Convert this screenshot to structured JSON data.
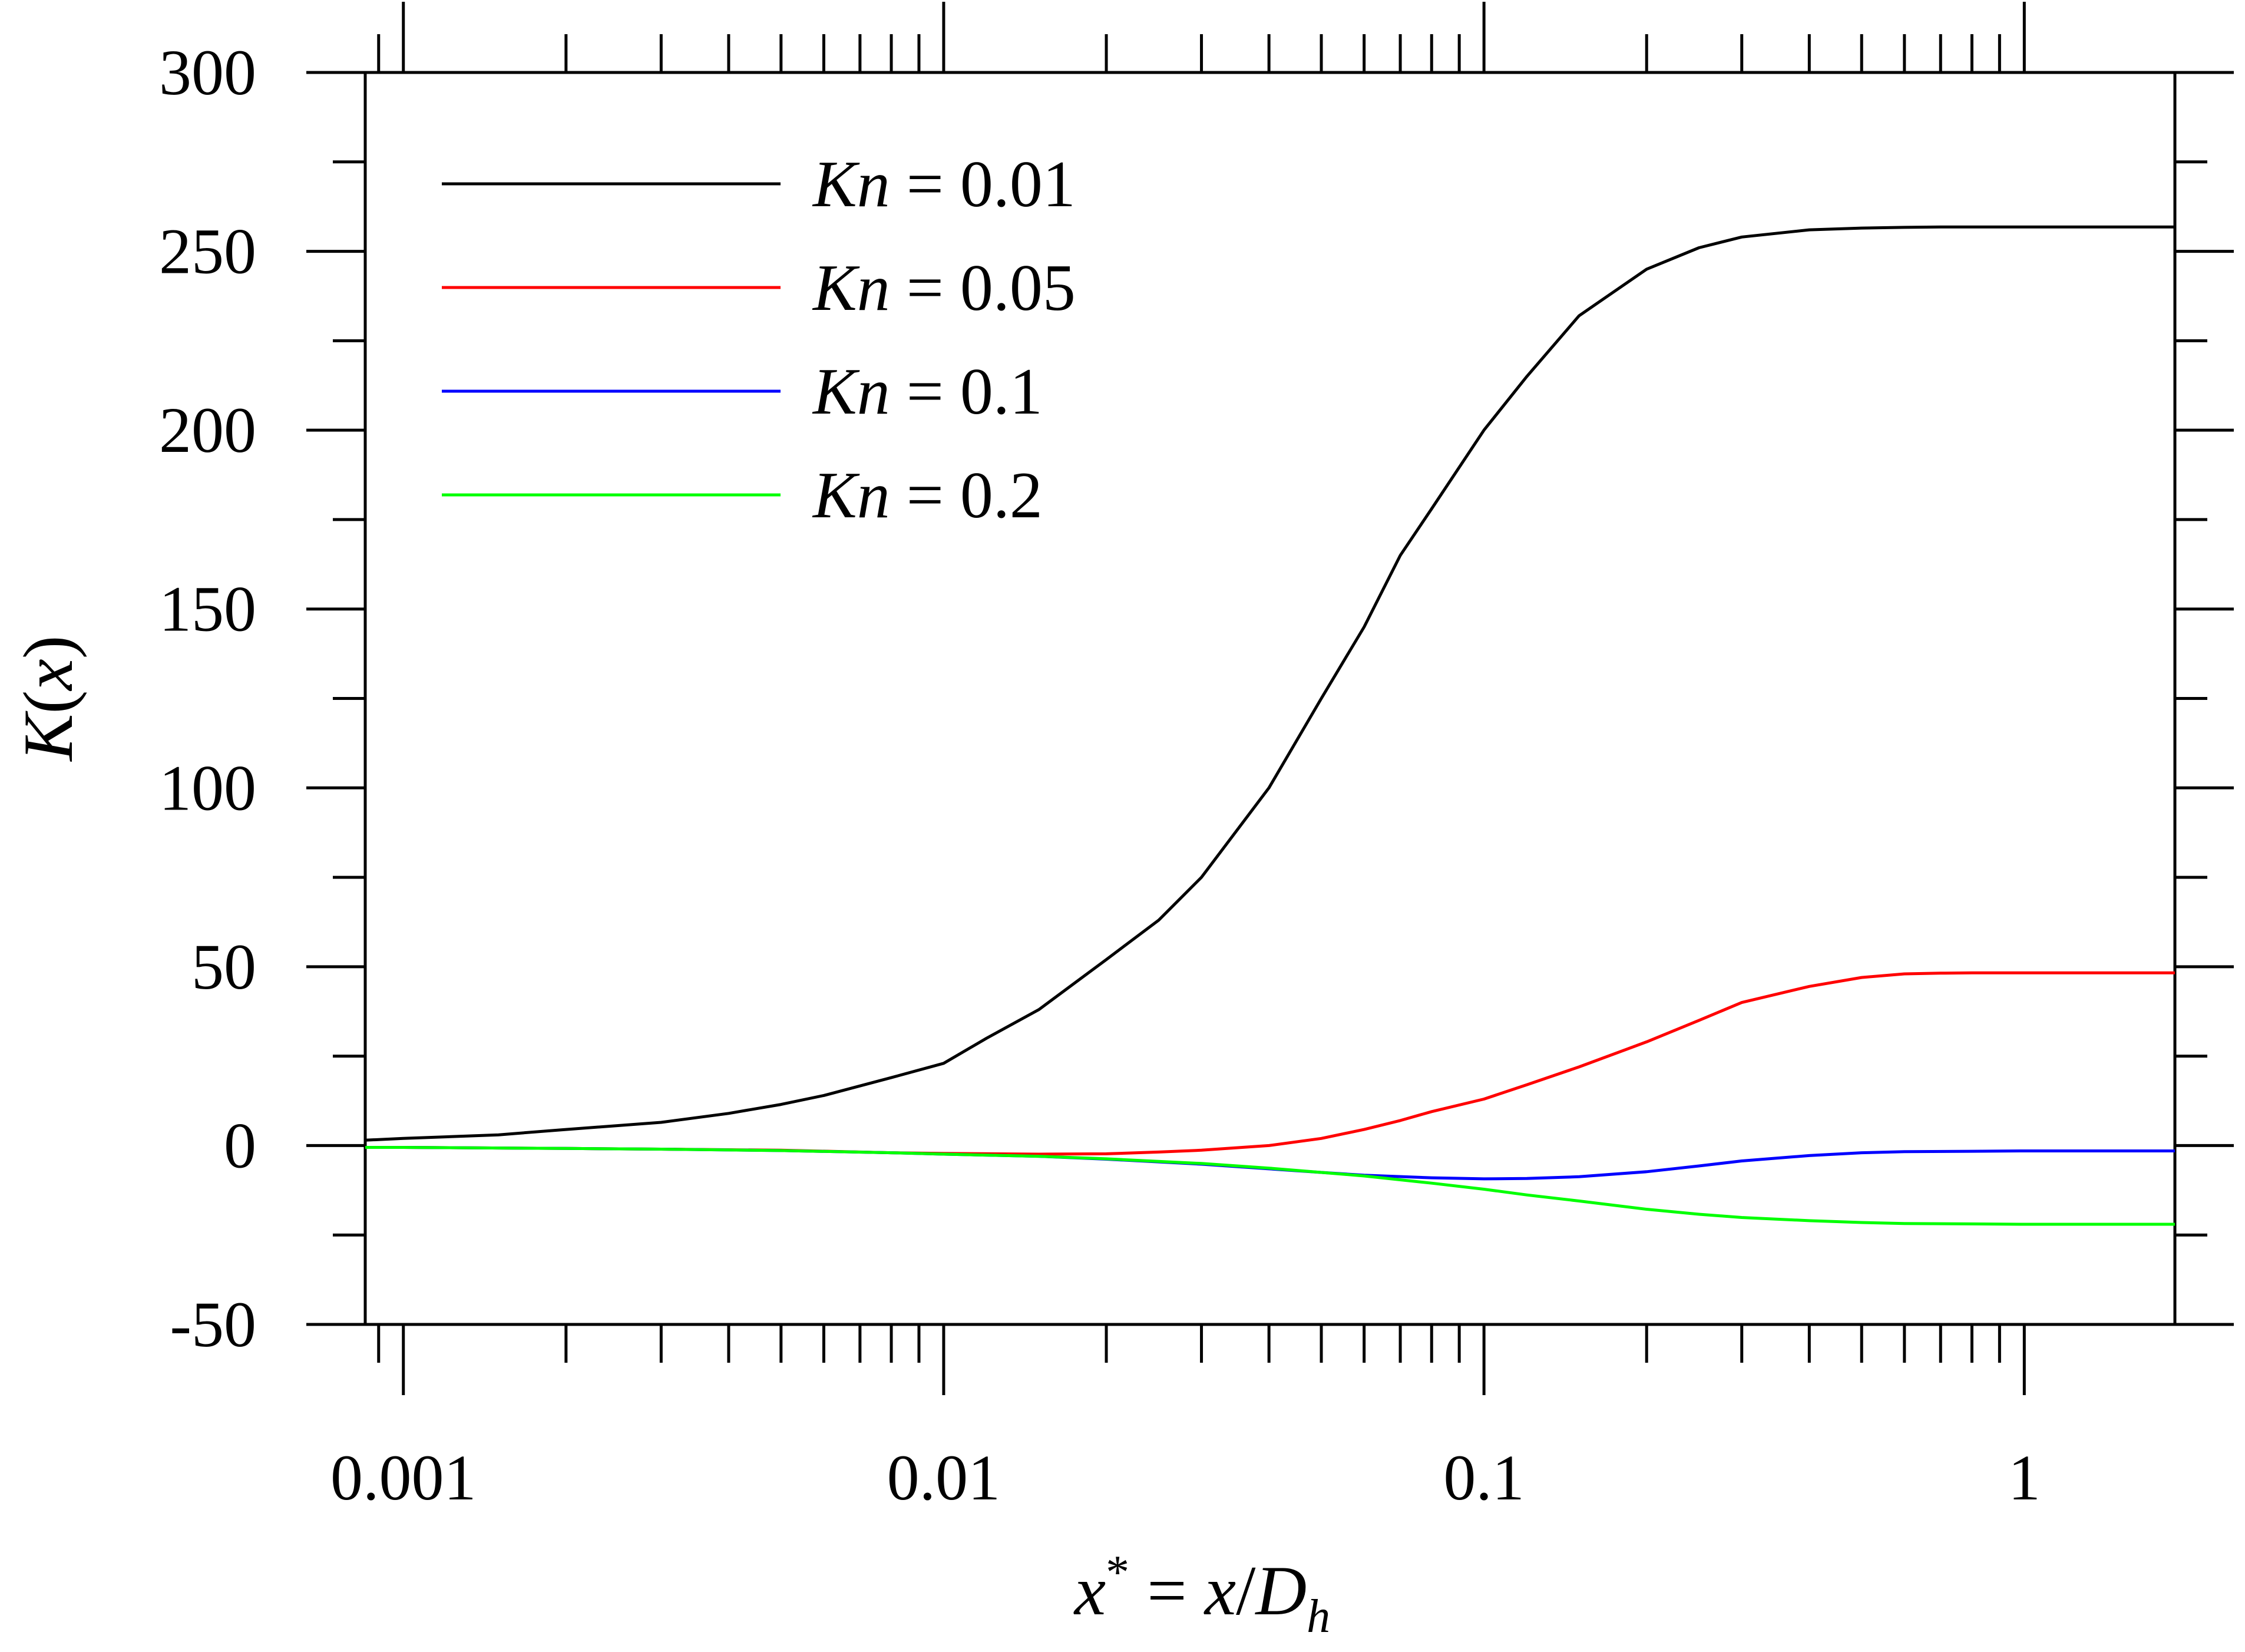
{
  "chart_data": {
    "type": "line",
    "title": "",
    "xlabel": "x* = x/Dh",
    "xlabel_parts": {
      "var": "x",
      "sup": "*",
      "eq": " = ",
      "num": "x",
      "slash": "/",
      "den": "D",
      "sub": "h"
    },
    "ylabel": "K(x)",
    "ylabel_parts": {
      "var": "K",
      "open": "(",
      "arg": "x",
      "close": ")"
    },
    "x_scale": "log",
    "xlim": [
      0.00085,
      1.9
    ],
    "ylim": [
      -50,
      300
    ],
    "x_ticks": [
      {
        "value": 0.001,
        "label": "0.001"
      },
      {
        "value": 0.01,
        "label": "0.01"
      },
      {
        "value": 0.1,
        "label": "0.1"
      },
      {
        "value": 1,
        "label": "1"
      }
    ],
    "y_ticks": [
      {
        "value": -50,
        "label": "-50"
      },
      {
        "value": 0,
        "label": "0"
      },
      {
        "value": 50,
        "label": "50"
      },
      {
        "value": 100,
        "label": "100"
      },
      {
        "value": 150,
        "label": "150"
      },
      {
        "value": 200,
        "label": "200"
      },
      {
        "value": 250,
        "label": "250"
      },
      {
        "value": 300,
        "label": "300"
      }
    ],
    "grid": false,
    "legend_position": "top-left",
    "series": [
      {
        "name": "Kn = 0.01",
        "name_var": "Kn",
        "name_rest": " = 0.01",
        "color": "#000000",
        "x": [
          0.00085,
          0.001,
          0.0015,
          0.002,
          0.003,
          0.004,
          0.005,
          0.006,
          0.008,
          0.01,
          0.012,
          0.015,
          0.02,
          0.025,
          0.03,
          0.04,
          0.05,
          0.06,
          0.07,
          0.08,
          0.1,
          0.12,
          0.15,
          0.2,
          0.25,
          0.3,
          0.4,
          0.5,
          0.6,
          0.7,
          0.8,
          1.0,
          1.5,
          1.9
        ],
        "y": [
          1.5,
          2,
          3,
          4.5,
          6.5,
          9,
          11.5,
          14,
          19,
          23,
          30,
          38,
          52,
          63,
          75,
          100,
          125,
          145,
          165,
          178,
          200,
          215,
          232,
          245,
          251,
          254,
          256,
          256.5,
          256.7,
          256.8,
          256.8,
          256.8,
          256.8,
          256.8
        ]
      },
      {
        "name": "Kn = 0.05",
        "name_var": "Kn",
        "name_rest": " = 0.05",
        "color": "#ff0000",
        "x": [
          0.00085,
          0.001,
          0.002,
          0.003,
          0.005,
          0.008,
          0.01,
          0.015,
          0.02,
          0.025,
          0.03,
          0.04,
          0.05,
          0.06,
          0.07,
          0.08,
          0.1,
          0.12,
          0.15,
          0.2,
          0.25,
          0.3,
          0.4,
          0.5,
          0.6,
          0.7,
          0.8,
          1.0,
          1.5,
          1.9
        ],
        "y": [
          -0.5,
          -0.5,
          -0.8,
          -1,
          -1.3,
          -2,
          -2.2,
          -2.4,
          -2.3,
          -1.8,
          -1.3,
          0,
          2,
          4.5,
          7,
          9.5,
          13,
          17,
          22,
          29,
          35,
          40,
          44.5,
          47,
          48,
          48.2,
          48.3,
          48.3,
          48.3,
          48.3
        ]
      },
      {
        "name": "Kn = 0.1",
        "name_var": "Kn",
        "name_rest": " = 0.1",
        "color": "#0000ff",
        "x": [
          0.00085,
          0.001,
          0.002,
          0.003,
          0.005,
          0.008,
          0.01,
          0.015,
          0.02,
          0.03,
          0.04,
          0.05,
          0.06,
          0.08,
          0.1,
          0.12,
          0.15,
          0.2,
          0.25,
          0.3,
          0.4,
          0.5,
          0.6,
          0.8,
          1.0,
          1.5,
          1.9
        ],
        "y": [
          -0.5,
          -0.5,
          -0.8,
          -1,
          -1.4,
          -2,
          -2.4,
          -3,
          -3.8,
          -5.2,
          -6.5,
          -7.5,
          -8.3,
          -9,
          -9.3,
          -9.2,
          -8.7,
          -7.3,
          -5.7,
          -4.3,
          -2.8,
          -2,
          -1.7,
          -1.6,
          -1.5,
          -1.5,
          -1.5
        ]
      },
      {
        "name": "Kn = 0.2",
        "name_var": "Kn",
        "name_rest": " = 0.2",
        "color": "#00ff00",
        "x": [
          0.00085,
          0.001,
          0.002,
          0.003,
          0.005,
          0.008,
          0.01,
          0.015,
          0.02,
          0.03,
          0.04,
          0.05,
          0.06,
          0.08,
          0.1,
          0.12,
          0.15,
          0.2,
          0.25,
          0.3,
          0.4,
          0.5,
          0.6,
          0.8,
          1.0,
          1.5,
          1.9
        ],
        "y": [
          -0.5,
          -0.5,
          -0.8,
          -1,
          -1.4,
          -2,
          -2.4,
          -3,
          -3.7,
          -5,
          -6.3,
          -7.5,
          -8.5,
          -10.5,
          -12.2,
          -13.8,
          -15.5,
          -17.8,
          -19.2,
          -20.1,
          -21,
          -21.5,
          -21.8,
          -21.9,
          -22,
          -22,
          -22
        ]
      }
    ]
  }
}
